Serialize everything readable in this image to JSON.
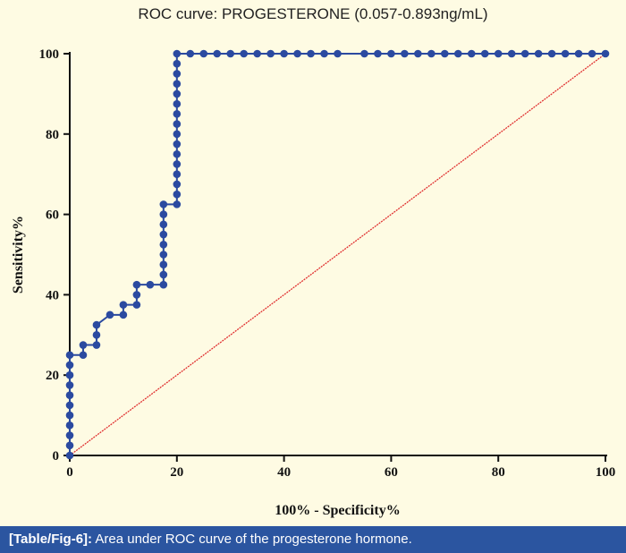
{
  "chart_data": {
    "type": "line",
    "title": "ROC curve: PROGESTERONE (0.057-0.893ng/mL)",
    "xlabel": "100% - Specificity%",
    "ylabel": "Sensitivity%",
    "xlim": [
      0,
      100
    ],
    "ylim": [
      0,
      100
    ],
    "xticks": [
      "0",
      "20",
      "40",
      "60",
      "80",
      "100"
    ],
    "yticks": [
      "0",
      "20",
      "40",
      "60",
      "80",
      "100"
    ],
    "series": [
      {
        "name": "ROC",
        "color": "#2b4aa0",
        "points": [
          [
            0,
            0
          ],
          [
            0,
            2.5
          ],
          [
            0,
            5
          ],
          [
            0,
            7.5
          ],
          [
            0,
            10
          ],
          [
            0,
            12.5
          ],
          [
            0,
            15
          ],
          [
            0,
            17.5
          ],
          [
            0,
            20
          ],
          [
            0,
            22.5
          ],
          [
            0,
            25
          ],
          [
            2.5,
            25
          ],
          [
            2.5,
            27.5
          ],
          [
            5,
            27.5
          ],
          [
            5,
            30
          ],
          [
            5,
            32.5
          ],
          [
            7.5,
            35
          ],
          [
            10,
            35
          ],
          [
            10,
            37.5
          ],
          [
            12.5,
            37.5
          ],
          [
            12.5,
            40
          ],
          [
            12.5,
            42.5
          ],
          [
            15,
            42.5
          ],
          [
            17.5,
            42.5
          ],
          [
            17.5,
            45
          ],
          [
            17.5,
            47.5
          ],
          [
            17.5,
            50
          ],
          [
            17.5,
            52.5
          ],
          [
            17.5,
            55
          ],
          [
            17.5,
            57.5
          ],
          [
            17.5,
            60
          ],
          [
            17.5,
            62.5
          ],
          [
            20,
            62.5
          ],
          [
            20,
            65
          ],
          [
            20,
            67.5
          ],
          [
            20,
            70
          ],
          [
            20,
            72.5
          ],
          [
            20,
            75
          ],
          [
            20,
            77.5
          ],
          [
            20,
            80
          ],
          [
            20,
            82.5
          ],
          [
            20,
            85
          ],
          [
            20,
            87.5
          ],
          [
            20,
            90
          ],
          [
            20,
            92.5
          ],
          [
            20,
            95
          ],
          [
            20,
            97.5
          ],
          [
            20,
            100
          ],
          [
            22.5,
            100
          ],
          [
            25,
            100
          ],
          [
            27.5,
            100
          ],
          [
            30,
            100
          ],
          [
            32.5,
            100
          ],
          [
            35,
            100
          ],
          [
            37.5,
            100
          ],
          [
            40,
            100
          ],
          [
            42.5,
            100
          ],
          [
            45,
            100
          ],
          [
            47.5,
            100
          ],
          [
            50,
            100
          ],
          [
            55,
            100
          ],
          [
            57.5,
            100
          ],
          [
            60,
            100
          ],
          [
            62.5,
            100
          ],
          [
            65,
            100
          ],
          [
            67.5,
            100
          ],
          [
            70,
            100
          ],
          [
            72.5,
            100
          ],
          [
            75,
            100
          ],
          [
            77.5,
            100
          ],
          [
            80,
            100
          ],
          [
            82.5,
            100
          ],
          [
            85,
            100
          ],
          [
            87.5,
            100
          ],
          [
            90,
            100
          ],
          [
            92.5,
            100
          ],
          [
            95,
            100
          ],
          [
            97.5,
            100
          ],
          [
            100,
            100
          ]
        ]
      },
      {
        "name": "Reference line",
        "color": "#e03030",
        "points": [
          [
            0,
            0
          ],
          [
            100,
            100
          ]
        ]
      }
    ]
  },
  "caption": {
    "label": "[Table/Fig-6]:",
    "text": " Area under ROC curve of the progesterone hormone."
  }
}
